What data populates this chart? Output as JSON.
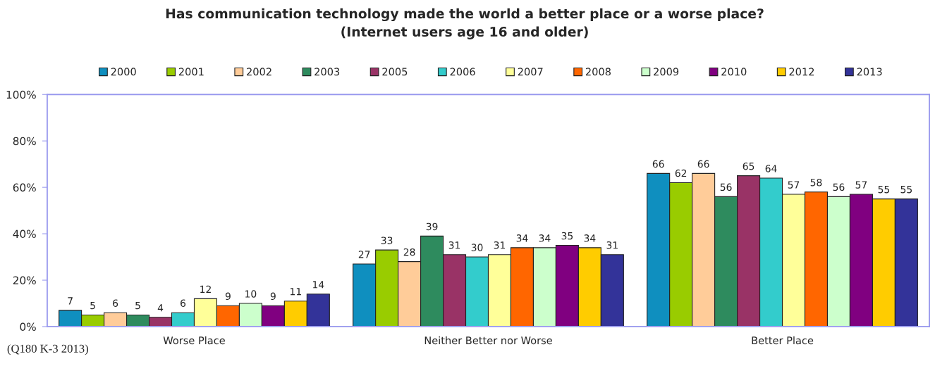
{
  "chart_data": {
    "type": "bar",
    "title": "Has communication technology made the world a better place or a worse place?",
    "subtitle": "(Internet users age 16 and older)",
    "categories": [
      "Worse Place",
      "Neither Better nor Worse",
      "Better Place"
    ],
    "series": [
      {
        "name": "2000",
        "color": "#0f8fbf",
        "values": [
          7,
          27,
          66
        ]
      },
      {
        "name": "2001",
        "color": "#99cc00",
        "values": [
          5,
          33,
          62
        ]
      },
      {
        "name": "2002",
        "color": "#ffcc99",
        "values": [
          6,
          28,
          66
        ]
      },
      {
        "name": "2003",
        "color": "#2e8b5e",
        "values": [
          5,
          39,
          56
        ]
      },
      {
        "name": "2005",
        "color": "#993366",
        "values": [
          4,
          31,
          65
        ]
      },
      {
        "name": "2006",
        "color": "#33cccc",
        "values": [
          6,
          30,
          64
        ]
      },
      {
        "name": "2007",
        "color": "#ffff99",
        "values": [
          12,
          31,
          57
        ]
      },
      {
        "name": "2008",
        "color": "#ff6600",
        "values": [
          9,
          34,
          58
        ]
      },
      {
        "name": "2009",
        "color": "#ccffcc",
        "values": [
          10,
          34,
          56
        ]
      },
      {
        "name": "2010",
        "color": "#800080",
        "values": [
          9,
          35,
          57
        ]
      },
      {
        "name": "2012",
        "color": "#ffcc00",
        "values": [
          11,
          34,
          55
        ]
      },
      {
        "name": "2013",
        "color": "#333399",
        "values": [
          14,
          31,
          55
        ]
      }
    ],
    "ylim": [
      0,
      100
    ],
    "yticks": [
      {
        "value": 0,
        "label": "0%"
      },
      {
        "value": 20,
        "label": "20%"
      },
      {
        "value": 40,
        "label": "40%"
      },
      {
        "value": 60,
        "label": "60%"
      },
      {
        "value": 80,
        "label": "80%"
      },
      {
        "value": 100,
        "label": "100%"
      }
    ],
    "data_labels": true,
    "legend": "top",
    "grid": false,
    "annotations": [
      "(Q180 K-3 2013)"
    ]
  }
}
